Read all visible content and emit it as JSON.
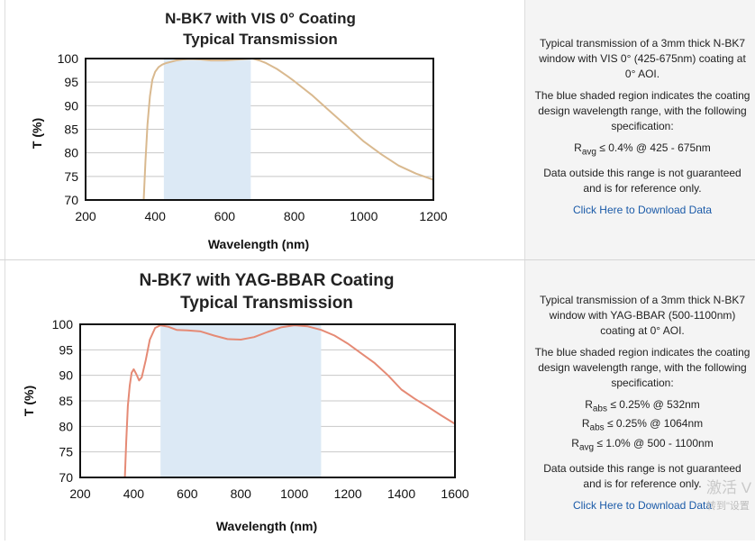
{
  "panels": [
    {
      "description": [
        "Typical transmission of a 3mm thick N-BK7 window with VIS 0° (425-675nm) coating at 0° AOI.",
        "The blue shaded region indicates the coating design wavelength range, with the following specification:"
      ],
      "specs": [
        {
          "sym": "R",
          "sub": "avg",
          "text": " ≤ 0.4% @ 425 - 675nm"
        }
      ],
      "note": "Data outside this range is not guaranteed and is for reference only.",
      "link": "Click Here to Download Data"
    },
    {
      "description": [
        "Typical transmission of a 3mm thick N-BK7 window with YAG-BBAR (500-1100nm) coating at 0° AOI.",
        "The blue shaded region indicates the coating design wavelength range, with the following specification:"
      ],
      "specs": [
        {
          "sym": "R",
          "sub": "abs",
          "text": " ≤ 0.25% @ 532nm"
        },
        {
          "sym": "R",
          "sub": "abs",
          "text": " ≤ 0.25% @ 1064nm"
        },
        {
          "sym": "R",
          "sub": "avg",
          "text": " ≤ 1.0% @ 500 - 1100nm"
        }
      ],
      "note": "Data outside this range is not guaranteed and is for reference only.",
      "link": "Click Here to Download Data"
    }
  ],
  "watermark": {
    "line1": "激活 V",
    "line2": "转到\"设置"
  },
  "chart_data": [
    {
      "type": "line",
      "title": [
        "N-BK7 with VIS 0° Coating",
        "Typical Transmission"
      ],
      "xlabel": "Wavelength (nm)",
      "ylabel": "T (%)",
      "xlim": [
        200,
        1200
      ],
      "ylim": [
        70,
        100
      ],
      "xticks": [
        200,
        400,
        600,
        800,
        1000,
        1200
      ],
      "yticks": [
        70,
        75,
        80,
        85,
        90,
        95,
        100
      ],
      "grid": true,
      "line_color": "#d9b98f",
      "shade_color": "#dce9f5",
      "shaded_range": [
        425,
        675
      ],
      "series": [
        {
          "x": [
            367,
            372,
            378,
            385,
            392,
            400,
            410,
            420,
            430,
            445,
            460,
            480,
            500,
            530,
            560,
            600,
            640,
            680,
            700,
            720,
            750,
            780,
            800,
            850,
            900,
            950,
            1000,
            1050,
            1100,
            1150,
            1200
          ],
          "y": [
            70,
            78,
            86,
            92,
            95.5,
            97.2,
            98.2,
            98.7,
            99.0,
            99.3,
            99.6,
            99.8,
            99.9,
            99.8,
            99.6,
            99.6,
            99.8,
            100,
            99.6,
            99.0,
            97.8,
            96.3,
            95.2,
            92.3,
            89.0,
            85.7,
            82.4,
            79.7,
            77.3,
            75.6,
            74.3
          ]
        }
      ]
    },
    {
      "type": "line",
      "title": [
        "N-BK7 with YAG-BBAR Coating",
        "Typical Transmission"
      ],
      "xlabel": "Wavelength (nm)",
      "ylabel": "T (%)",
      "xlim": [
        200,
        1600
      ],
      "ylim": [
        70,
        100
      ],
      "xticks": [
        200,
        400,
        600,
        800,
        1000,
        1200,
        1400,
        1600
      ],
      "yticks": [
        70,
        75,
        80,
        85,
        90,
        95,
        100
      ],
      "grid": true,
      "line_color": "#e58a75",
      "shade_color": "#dce9f5",
      "shaded_range": [
        500,
        1100
      ],
      "series": [
        {
          "x": [
            367,
            372,
            378,
            385,
            392,
            400,
            410,
            420,
            430,
            445,
            460,
            480,
            500,
            530,
            560,
            600,
            650,
            700,
            750,
            800,
            850,
            900,
            950,
            1000,
            1050,
            1100,
            1150,
            1200,
            1250,
            1300,
            1350,
            1400,
            1450,
            1500,
            1550,
            1600
          ],
          "y": [
            70,
            77,
            84,
            88,
            90.5,
            91.2,
            90.2,
            89,
            89.6,
            93,
            97,
            99.3,
            99.8,
            99.5,
            98.9,
            98.8,
            98.6,
            97.8,
            97.1,
            97.0,
            97.5,
            98.5,
            99.4,
            99.8,
            99.6,
            98.9,
            97.8,
            96.2,
            94.3,
            92.4,
            90.0,
            87.2,
            85.4,
            83.8,
            82.1,
            80.5
          ]
        }
      ]
    }
  ]
}
